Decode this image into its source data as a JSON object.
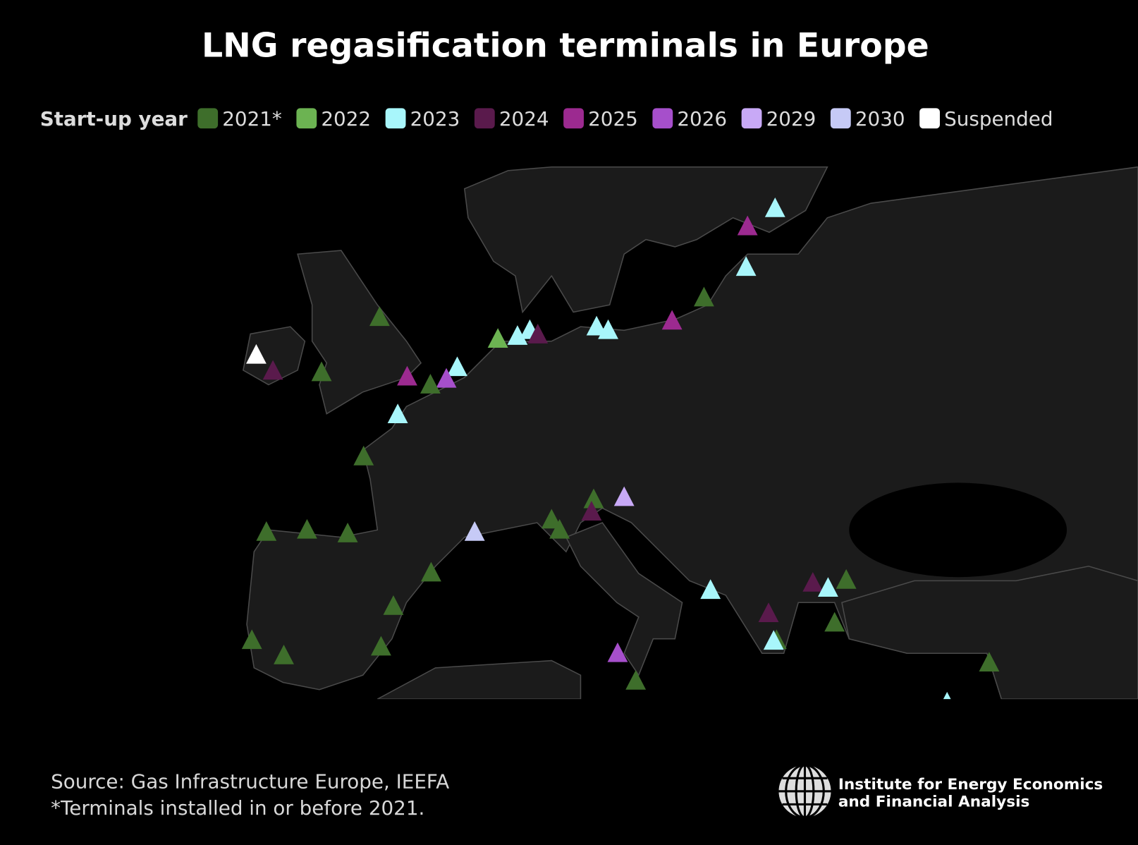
{
  "title": "LNG regasification terminals in Europe",
  "legend": {
    "label": "Start-up year",
    "items": [
      {
        "name": "2021*",
        "color": "#3e6e2b"
      },
      {
        "name": "2022",
        "color": "#6cb352"
      },
      {
        "name": "2023",
        "color": "#a8f6fb"
      },
      {
        "name": "2024",
        "color": "#5a1a4c"
      },
      {
        "name": "2025",
        "color": "#9c2a90"
      },
      {
        "name": "2026",
        "color": "#a64fcb"
      },
      {
        "name": "2029",
        "color": "#c8a9f6"
      },
      {
        "name": "2030",
        "color": "#c6caf6"
      },
      {
        "name": "Suspended",
        "color": "#ffffff"
      }
    ]
  },
  "source": "Source: Gas Infrastructure Europe, IEEFA",
  "footnote": "*Terminals installed in or before 2021.",
  "logo": {
    "line1": "Institute for Energy Economics",
    "line2": "and Financial Analysis"
  }
}
